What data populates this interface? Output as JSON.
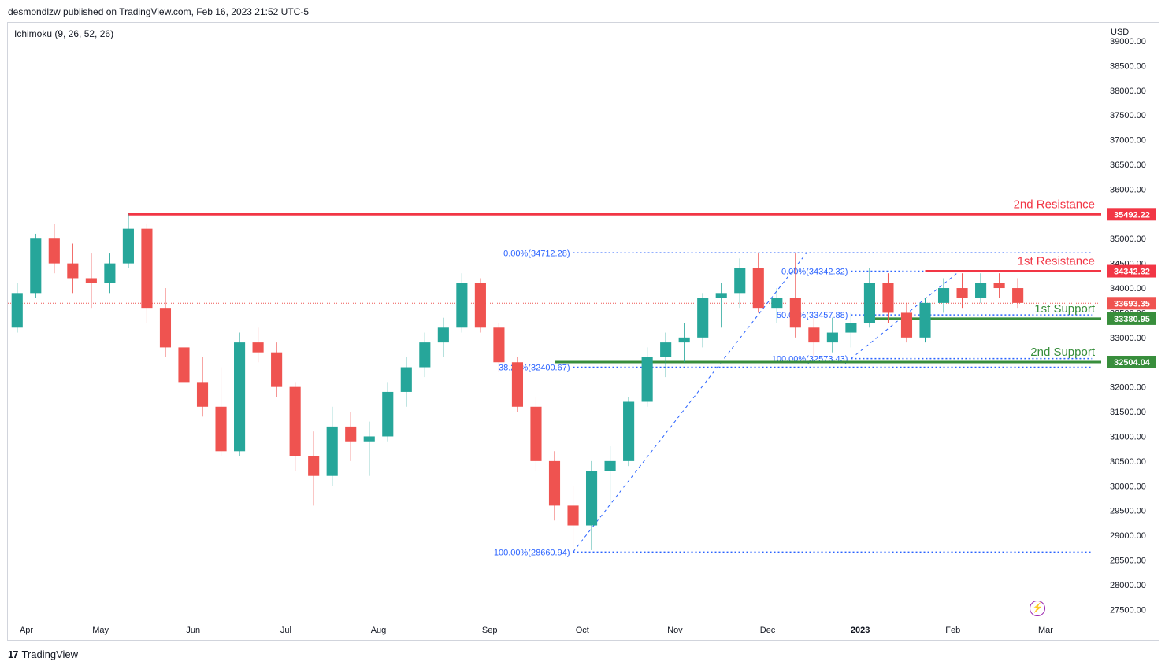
{
  "header": {
    "published": "desmondlzw published on TradingView.com, Feb 16, 2023 21:52 UTC-5"
  },
  "indicator": {
    "label": "Ichimoku (9, 26, 52, 26)"
  },
  "axis": {
    "currency": "USD"
  },
  "footer": {
    "brand": "TradingView",
    "logo_icon": "tradingview-logo-icon"
  },
  "colors": {
    "up": "#26a69a",
    "down": "#ef5350",
    "resistance": "#f23645",
    "support": "#388e3c",
    "fib": "#2962ff",
    "fib_text": "#2962ff",
    "cloud_bull": "#e8f5e9",
    "cloud_bear": "#fde8e8",
    "last_price": "#ef5350"
  },
  "chart_data": {
    "type": "candlestick",
    "title": "",
    "ylim": [
      27250,
      39350
    ],
    "y_ticks": [
      39000,
      38500,
      38000,
      37500,
      37000,
      36500,
      36000,
      35500,
      35000,
      34500,
      34000,
      33500,
      33000,
      32500,
      32000,
      31500,
      31000,
      30500,
      30000,
      29500,
      29000,
      28500,
      28000,
      27500
    ],
    "y_tick_labels": [
      "39000.00",
      "38500.00",
      "38000.00",
      "37500.00",
      "37000.00",
      "36500.00",
      "36000.00",
      "35500.00",
      "35000.00",
      "34500.00",
      "34000.00",
      "33500.00",
      "33000.00",
      "32500.00",
      "32000.00",
      "31500.00",
      "31000.00",
      "30500.00",
      "30000.00",
      "29500.00",
      "29000.00",
      "28500.00",
      "28000.00",
      "27500.00"
    ],
    "x_labels": [
      "Apr",
      "May",
      "Jun",
      "Jul",
      "Aug",
      "Sep",
      "Oct",
      "Nov",
      "Dec",
      "2023",
      "Feb",
      "Mar"
    ],
    "x_label_pos": [
      0.5,
      4.5,
      9.5,
      14.5,
      19.5,
      25.5,
      30.5,
      35.5,
      40.5,
      45.5,
      50.5,
      55.5
    ],
    "x_count": 59,
    "levels": [
      {
        "name": "2nd Resistance",
        "value": 35492.22,
        "label": "35492.22",
        "kind": "resistance",
        "x_start": 6
      },
      {
        "name": "1st Resistance",
        "value": 34342.32,
        "label": "34342.32",
        "kind": "resistance",
        "x_start": 49
      },
      {
        "name": "1st Support",
        "value": 33380.95,
        "label": "33380.95",
        "kind": "support",
        "x_start": 46
      },
      {
        "name": "2nd Support",
        "value": 32504.04,
        "label": "32504.04",
        "kind": "support",
        "x_start": 29
      }
    ],
    "last_price": {
      "value": 33693.35,
      "label": "33693.35"
    },
    "fib_sets": [
      {
        "levels": [
          {
            "pct": "0.00%(34712.28)",
            "value": 34712.28
          },
          {
            "pct": "38.20%(32400.67)",
            "value": 32400.67
          },
          {
            "pct": "100.00%(28660.94)",
            "value": 28660.94
          }
        ],
        "x_from": 30,
        "x_to": 58
      },
      {
        "levels": [
          {
            "pct": "0.00%(34342.32)",
            "value": 34342.32
          },
          {
            "pct": "50.00%(33457.88)",
            "value": 33457.88
          },
          {
            "pct": "100.00%(32573.43)",
            "value": 32573.43
          }
        ],
        "x_from": 45,
        "x_to": 58
      }
    ],
    "series": [
      {
        "ohlc": [
          [
            33200,
            34100,
            33100,
            33900
          ],
          [
            33900,
            35100,
            33800,
            35000
          ],
          [
            35000,
            35300,
            34300,
            34500
          ],
          [
            34500,
            34900,
            33900,
            34200
          ],
          [
            34200,
            34700,
            33600,
            34100
          ],
          [
            34100,
            34700,
            33900,
            34500
          ],
          [
            34500,
            35500,
            34400,
            35200
          ],
          [
            35200,
            35300,
            33300,
            33600
          ],
          [
            33600,
            34000,
            32600,
            32800
          ],
          [
            32800,
            33300,
            31800,
            32100
          ],
          [
            32100,
            32600,
            31400,
            31600
          ],
          [
            31600,
            32400,
            30600,
            30700
          ],
          [
            30700,
            33100,
            30600,
            32900
          ],
          [
            32900,
            33200,
            32500,
            32700
          ],
          [
            32700,
            32900,
            31800,
            32000
          ],
          [
            32000,
            32100,
            30300,
            30600
          ],
          [
            30600,
            31100,
            29600,
            30200
          ],
          [
            30200,
            31600,
            30000,
            31200
          ],
          [
            31200,
            31500,
            30500,
            30900
          ],
          [
            30900,
            31300,
            30200,
            31000
          ],
          [
            31000,
            32100,
            30900,
            31900
          ],
          [
            31900,
            32600,
            31600,
            32400
          ],
          [
            32400,
            33100,
            32200,
            32900
          ],
          [
            32900,
            33400,
            32600,
            33200
          ],
          [
            33200,
            34300,
            33100,
            34100
          ],
          [
            34100,
            34200,
            33100,
            33200
          ],
          [
            33200,
            33300,
            32300,
            32500
          ],
          [
            32500,
            32600,
            31500,
            31600
          ],
          [
            31600,
            31800,
            30300,
            30500
          ],
          [
            30500,
            30700,
            29300,
            29600
          ],
          [
            29600,
            30000,
            28700,
            29200
          ],
          [
            29200,
            30500,
            28700,
            30300
          ],
          [
            30300,
            30800,
            29600,
            30500
          ],
          [
            30500,
            31800,
            30400,
            31700
          ],
          [
            31700,
            32800,
            31600,
            32600
          ],
          [
            32600,
            33100,
            32200,
            32900
          ],
          [
            32900,
            33300,
            32500,
            33000
          ],
          [
            33000,
            33900,
            32800,
            33800
          ],
          [
            33800,
            34100,
            33200,
            33900
          ],
          [
            33900,
            34600,
            33600,
            34400
          ],
          [
            34400,
            34700,
            33500,
            33600
          ],
          [
            33600,
            34000,
            33300,
            33800
          ],
          [
            33800,
            34700,
            33000,
            33200
          ],
          [
            33200,
            33400,
            32600,
            32900
          ],
          [
            32900,
            33400,
            32700,
            33100
          ],
          [
            33100,
            33500,
            32800,
            33300
          ],
          [
            33300,
            34400,
            33200,
            34100
          ],
          [
            34100,
            34300,
            33300,
            33500
          ],
          [
            33500,
            33700,
            32900,
            33000
          ],
          [
            33000,
            33800,
            32900,
            33700
          ],
          [
            33700,
            34200,
            33500,
            34000
          ],
          [
            34000,
            34300,
            33600,
            33800
          ],
          [
            33800,
            34300,
            33700,
            34100
          ],
          [
            34100,
            34300,
            33800,
            34000
          ],
          [
            34000,
            34200,
            33600,
            33700
          ]
        ]
      }
    ]
  }
}
